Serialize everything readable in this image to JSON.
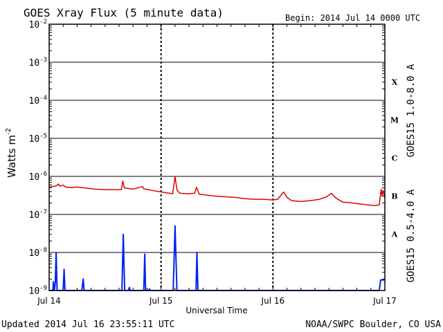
{
  "header": {
    "title": "GOES Xray Flux (5 minute data)",
    "begin": "Begin:  2014 Jul 14 0000 UTC"
  },
  "footer": {
    "updated": "Updated 2014 Jul 16 23:55:11 UTC",
    "source": "NOAA/SWPC Boulder, CO USA"
  },
  "chart_data": {
    "type": "line",
    "title": "GOES Xray Flux (5 minute data)",
    "xlabel": "Universal Time",
    "ylabel": "Watts m⁻²",
    "yscale": "log",
    "ylim": [
      1e-09,
      0.01
    ],
    "xlim": [
      0,
      72
    ],
    "x_unit": "hours since 2014 Jul 14 0000 UTC",
    "x_ticks": [
      {
        "x": 0,
        "label": "Jul 14"
      },
      {
        "x": 24,
        "label": "Jul 15"
      },
      {
        "x": 48,
        "label": "Jul 16"
      },
      {
        "x": 72,
        "label": "Jul 17"
      }
    ],
    "y_ticks": [
      {
        "mant": "10",
        "exp": "-9",
        "v": -9
      },
      {
        "mant": "10",
        "exp": "-8",
        "v": -8
      },
      {
        "mant": "10",
        "exp": "-7",
        "v": -7
      },
      {
        "mant": "10",
        "exp": "-6",
        "v": -6
      },
      {
        "mant": "10",
        "exp": "-5",
        "v": -5
      },
      {
        "mant": "10",
        "exp": "-4",
        "v": -4
      },
      {
        "mant": "10",
        "exp": "-3",
        "v": -3
      },
      {
        "mant": "10",
        "exp": "-2",
        "v": -2
      }
    ],
    "flare_classes": [
      {
        "label": "X",
        "v": -3.5
      },
      {
        "label": "M",
        "v": -4.5
      },
      {
        "label": "C",
        "v": -5.5
      },
      {
        "label": "B",
        "v": -6.5
      },
      {
        "label": "A",
        "v": -7.5
      }
    ],
    "grid": true,
    "colors": {
      "long": "#e00000",
      "short": "#0022ee"
    },
    "series": [
      {
        "name": "GOES15 1.0-8.0 A",
        "color": "#e00000",
        "points": [
          [
            0.0,
            5.3e-07
          ],
          [
            1.5,
            5.6e-07
          ],
          [
            2.0,
            6.3e-07
          ],
          [
            2.3,
            5.5e-07
          ],
          [
            3.0,
            5.9e-07
          ],
          [
            3.6,
            5.2e-07
          ],
          [
            5.0,
            5.1e-07
          ],
          [
            6.0,
            5.3e-07
          ],
          [
            8.0,
            4.9e-07
          ],
          [
            10.0,
            4.6e-07
          ],
          [
            12.0,
            4.5e-07
          ],
          [
            15.5,
            4.5e-07
          ],
          [
            15.8,
            7.6e-07
          ],
          [
            16.1,
            5e-07
          ],
          [
            18.0,
            4.6e-07
          ],
          [
            20.0,
            5.4e-07
          ],
          [
            20.3,
            4.7e-07
          ],
          [
            22.0,
            4.3e-07
          ],
          [
            24.0,
            3.9e-07
          ],
          [
            26.5,
            3.5e-07
          ],
          [
            27.0,
            1e-06
          ],
          [
            27.4,
            4.4e-07
          ],
          [
            28.0,
            3.6e-07
          ],
          [
            30.0,
            3.5e-07
          ],
          [
            31.2,
            3.6e-07
          ],
          [
            31.6,
            5.2e-07
          ],
          [
            32.2,
            3.4e-07
          ],
          [
            34.0,
            3.2e-07
          ],
          [
            36.0,
            3e-07
          ],
          [
            38.0,
            2.9e-07
          ],
          [
            40.0,
            2.8e-07
          ],
          [
            42.0,
            2.6e-07
          ],
          [
            44.0,
            2.5e-07
          ],
          [
            46.0,
            2.5e-07
          ],
          [
            48.0,
            2.4e-07
          ],
          [
            49.0,
            2.5e-07
          ],
          [
            50.3,
            3.9e-07
          ],
          [
            51.0,
            2.8e-07
          ],
          [
            52.0,
            2.3e-07
          ],
          [
            54.0,
            2.2e-07
          ],
          [
            56.0,
            2.3e-07
          ],
          [
            58.0,
            2.5e-07
          ],
          [
            59.5,
            2.9e-07
          ],
          [
            60.5,
            3.6e-07
          ],
          [
            61.5,
            2.7e-07
          ],
          [
            63.0,
            2.1e-07
          ],
          [
            65.0,
            2e-07
          ],
          [
            66.5,
            1.9e-07
          ],
          [
            68.0,
            1.8e-07
          ],
          [
            70.0,
            1.7e-07
          ],
          [
            70.8,
            1.8e-07
          ],
          [
            71.2,
            4.6e-07
          ],
          [
            71.4,
            3e-07
          ],
          [
            71.6,
            4.2e-07
          ],
          [
            72.0,
            2.8e-07
          ]
        ]
      },
      {
        "name": "GOES15 0.5-4.0 A",
        "color": "#0022ee",
        "points": [
          [
            0.0,
            1e-09
          ],
          [
            0.8,
            1e-09
          ],
          [
            0.9,
            1.7e-09
          ],
          [
            1.1,
            1e-09
          ],
          [
            1.3,
            1.5e-09
          ],
          [
            1.5,
            1e-08
          ],
          [
            1.7,
            1e-09
          ],
          [
            3.0,
            1e-09
          ],
          [
            3.2,
            3.6e-09
          ],
          [
            3.4,
            1e-09
          ],
          [
            7.0,
            1e-09
          ],
          [
            7.3,
            2e-09
          ],
          [
            7.5,
            1e-09
          ],
          [
            15.6,
            1e-09
          ],
          [
            15.9,
            3e-08
          ],
          [
            16.2,
            1e-09
          ],
          [
            17.0,
            1e-09
          ],
          [
            17.2,
            1.2e-09
          ],
          [
            17.4,
            1e-09
          ],
          [
            20.3,
            1e-09
          ],
          [
            20.5,
            9e-09
          ],
          [
            20.7,
            1e-09
          ],
          [
            21.3,
            1e-09
          ],
          [
            21.5,
            1.1e-09
          ],
          [
            21.7,
            1e-09
          ],
          [
            26.6,
            1e-09
          ],
          [
            27.0,
            5e-08
          ],
          [
            27.4,
            1e-09
          ],
          [
            31.5,
            1e-09
          ],
          [
            31.7,
            1e-08
          ],
          [
            31.9,
            1e-09
          ],
          [
            70.8,
            1e-09
          ],
          [
            71.1,
            1.9e-09
          ],
          [
            72.0,
            1.9e-09
          ]
        ]
      }
    ]
  }
}
